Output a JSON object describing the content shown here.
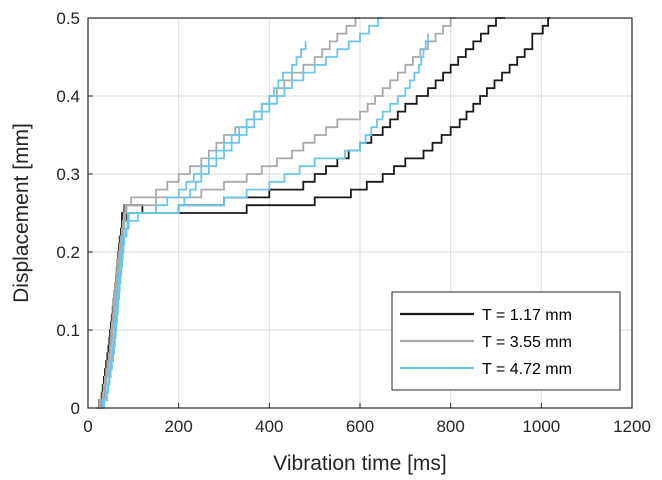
{
  "chart_data": {
    "type": "line",
    "xlabel": "Vibration time [ms]",
    "ylabel": "Displacement [mm]",
    "xlim": [
      0,
      1200
    ],
    "ylim": [
      0,
      0.5
    ],
    "xticks": [
      "0",
      "200",
      "400",
      "600",
      "800",
      "1000",
      "1200"
    ],
    "yticks": [
      "0",
      "0.1",
      "0.2",
      "0.3",
      "0.4",
      "0.5"
    ],
    "grid": true,
    "legend": {
      "position": "bottom-right"
    },
    "series": [
      {
        "name": "T = 1.17 mm",
        "color": "#1a1a1a",
        "runs": [
          [
            [
              20,
              0
            ],
            [
              30,
              0.02
            ],
            [
              45,
              0.08
            ],
            [
              60,
              0.16
            ],
            [
              70,
              0.22
            ],
            [
              75,
              0.245
            ],
            [
              80,
              0.255
            ],
            [
              120,
              0.25
            ],
            [
              200,
              0.26
            ],
            [
              300,
              0.27
            ],
            [
              400,
              0.275
            ],
            [
              450,
              0.285
            ],
            [
              500,
              0.3
            ],
            [
              550,
              0.32
            ],
            [
              600,
              0.34
            ],
            [
              650,
              0.36
            ],
            [
              700,
              0.385
            ],
            [
              750,
              0.41
            ],
            [
              800,
              0.44
            ],
            [
              850,
              0.47
            ],
            [
              900,
              0.5
            ],
            [
              920,
              0.5
            ]
          ],
          [
            [
              25,
              0
            ],
            [
              35,
              0.02
            ],
            [
              50,
              0.08
            ],
            [
              62,
              0.16
            ],
            [
              72,
              0.22
            ],
            [
              78,
              0.24
            ],
            [
              85,
              0.25
            ],
            [
              150,
              0.245
            ],
            [
              250,
              0.25
            ],
            [
              350,
              0.255
            ],
            [
              420,
              0.26
            ],
            [
              500,
              0.27
            ],
            [
              580,
              0.285
            ],
            [
              650,
              0.3
            ],
            [
              700,
              0.315
            ],
            [
              760,
              0.34
            ],
            [
              820,
              0.37
            ],
            [
              880,
              0.405
            ],
            [
              930,
              0.44
            ],
            [
              980,
              0.475
            ],
            [
              1015,
              0.5
            ],
            [
              1020,
              0.5
            ]
          ]
        ]
      },
      {
        "name": "T = 3.55 mm",
        "color": "#aaaaaa",
        "runs": [
          [
            [
              20,
              0
            ],
            [
              32,
              0.02
            ],
            [
              48,
              0.08
            ],
            [
              60,
              0.16
            ],
            [
              72,
              0.22
            ],
            [
              82,
              0.26
            ],
            [
              95,
              0.27
            ],
            [
              150,
              0.28
            ],
            [
              200,
              0.3
            ],
            [
              250,
              0.32
            ],
            [
              300,
              0.35
            ],
            [
              350,
              0.37
            ],
            [
              400,
              0.4
            ],
            [
              450,
              0.43
            ],
            [
              500,
              0.45
            ],
            [
              550,
              0.48
            ],
            [
              590,
              0.5
            ],
            [
              600,
              0.5
            ]
          ],
          [
            [
              22,
              0
            ],
            [
              35,
              0.02
            ],
            [
              50,
              0.08
            ],
            [
              63,
              0.16
            ],
            [
              75,
              0.22
            ],
            [
              85,
              0.255
            ],
            [
              100,
              0.26
            ],
            [
              150,
              0.265
            ],
            [
              250,
              0.28
            ],
            [
              350,
              0.3
            ],
            [
              450,
              0.33
            ],
            [
              550,
              0.37
            ],
            [
              600,
              0.38
            ],
            [
              650,
              0.41
            ],
            [
              700,
              0.44
            ],
            [
              750,
              0.47
            ],
            [
              800,
              0.5
            ],
            [
              810,
              0.5
            ]
          ]
        ]
      },
      {
        "name": "T = 4.72 mm",
        "color": "#6cc6ea",
        "runs": [
          [
            [
              30,
              0
            ],
            [
              42,
              0.02
            ],
            [
              58,
              0.08
            ],
            [
              70,
              0.16
            ],
            [
              80,
              0.22
            ],
            [
              90,
              0.245
            ],
            [
              105,
              0.25
            ],
            [
              150,
              0.26
            ],
            [
              200,
              0.28
            ],
            [
              250,
              0.31
            ],
            [
              300,
              0.34
            ],
            [
              350,
              0.37
            ],
            [
              400,
              0.4
            ],
            [
              430,
              0.43
            ],
            [
              450,
              0.44
            ],
            [
              480,
              0.465
            ]
          ],
          [
            [
              25,
              0
            ],
            [
              40,
              0.02
            ],
            [
              55,
              0.08
            ],
            [
              66,
              0.16
            ],
            [
              77,
              0.22
            ],
            [
              87,
              0.24
            ],
            [
              110,
              0.245
            ],
            [
              200,
              0.26
            ],
            [
              250,
              0.3
            ],
            [
              300,
              0.33
            ],
            [
              350,
              0.36
            ],
            [
              400,
              0.39
            ],
            [
              450,
              0.42
            ],
            [
              500,
              0.44
            ],
            [
              550,
              0.46
            ],
            [
              600,
              0.48
            ],
            [
              640,
              0.5
            ],
            [
              650,
              0.5
            ]
          ],
          [
            [
              28,
              0
            ],
            [
              40,
              0.02
            ],
            [
              57,
              0.08
            ],
            [
              68,
              0.16
            ],
            [
              79,
              0.22
            ],
            [
              88,
              0.245
            ],
            [
              120,
              0.25
            ],
            [
              200,
              0.26
            ],
            [
              300,
              0.27
            ],
            [
              400,
              0.29
            ],
            [
              500,
              0.315
            ],
            [
              600,
              0.34
            ],
            [
              650,
              0.38
            ],
            [
              700,
              0.41
            ],
            [
              730,
              0.44
            ],
            [
              750,
              0.48
            ]
          ]
        ]
      }
    ]
  }
}
